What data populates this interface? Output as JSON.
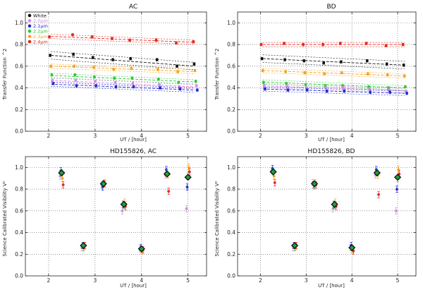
{
  "chart_data": [
    {
      "type": "scatter",
      "title": "AC",
      "xlabel": "UT / [hour]",
      "ylabel": "Transfer Function ^2",
      "xlim": [
        1.5,
        5.4
      ],
      "ylim": [
        0.0,
        1.1
      ],
      "xticks": [
        "2",
        "3",
        "4",
        "5"
      ],
      "yticks": [
        "0.0",
        "0.2",
        "0.4",
        "0.6",
        "0.8",
        "1.0"
      ],
      "legend": {
        "placement": "top-left",
        "entries": [
          "White",
          "2.0μm",
          "2.1μm",
          "2.2μm",
          "2.3μm",
          "2.4μm"
        ]
      },
      "x": [
        2.05,
        2.55,
        2.97,
        3.4,
        3.78,
        4.35,
        4.78,
        5.15
      ],
      "series": [
        {
          "name": "2.4μm",
          "color": "#e8241b",
          "values": [
            0.87,
            0.89,
            0.87,
            0.855,
            0.84,
            0.84,
            0.815,
            0.825
          ],
          "fit": [
            0.875,
            0.82
          ],
          "band": 0.02
        },
        {
          "name": "White",
          "color": "#111111",
          "values": [
            0.7,
            0.71,
            0.68,
            0.66,
            0.67,
            0.66,
            0.6,
            0.62
          ],
          "fit": [
            0.7,
            0.6
          ],
          "band": 0.035
        },
        {
          "name": "2.3μm",
          "color": "#f5a41a",
          "values": [
            0.6,
            0.6,
            0.59,
            0.57,
            0.58,
            0.57,
            0.55,
            0.56
          ],
          "fit": [
            0.6,
            0.55
          ],
          "band": 0.02
        },
        {
          "name": "2.2μm",
          "color": "#29c93a",
          "values": [
            0.52,
            0.52,
            0.5,
            0.49,
            0.49,
            0.48,
            0.45,
            0.46
          ],
          "fit": [
            0.515,
            0.455
          ],
          "band": 0.02
        },
        {
          "name": "2.0μm",
          "color": "#d88be0",
          "values": [
            0.47,
            0.47,
            0.46,
            0.45,
            0.44,
            0.43,
            0.41,
            0.42
          ],
          "fit": [
            0.47,
            0.41
          ],
          "band": 0.02
        },
        {
          "name": "2.1μm",
          "color": "#1f2ad6",
          "values": [
            0.44,
            0.42,
            0.42,
            0.41,
            0.41,
            0.4,
            0.39,
            0.38
          ],
          "fit": [
            0.435,
            0.38
          ],
          "band": 0.02
        }
      ]
    },
    {
      "type": "scatter",
      "title": "BD",
      "xlabel": "UT / [hour]",
      "ylabel": "Transfer Function ^2",
      "xlim": [
        1.5,
        5.4
      ],
      "ylim": [
        0.0,
        1.1
      ],
      "xticks": [
        "2",
        "3",
        "4",
        "5"
      ],
      "yticks": [
        "0.0",
        "0.2",
        "0.4",
        "0.6",
        "0.8",
        "1.0"
      ],
      "x": [
        2.05,
        2.55,
        2.97,
        3.4,
        3.78,
        4.35,
        4.78,
        5.15
      ],
      "series": [
        {
          "name": "2.4μm",
          "color": "#e8241b",
          "values": [
            0.8,
            0.81,
            0.8,
            0.8,
            0.81,
            0.81,
            0.79,
            0.8
          ],
          "fit": [
            0.8,
            0.8
          ],
          "band": 0.02
        },
        {
          "name": "White",
          "color": "#111111",
          "values": [
            0.67,
            0.66,
            0.65,
            0.63,
            0.64,
            0.65,
            0.62,
            0.61
          ],
          "fit": [
            0.67,
            0.61
          ],
          "band": 0.035
        },
        {
          "name": "2.3μm",
          "color": "#f5a41a",
          "values": [
            0.56,
            0.55,
            0.54,
            0.53,
            0.54,
            0.53,
            0.52,
            0.51
          ],
          "fit": [
            0.56,
            0.51
          ],
          "band": 0.02
        },
        {
          "name": "2.2μm",
          "color": "#29c93a",
          "values": [
            0.45,
            0.44,
            0.43,
            0.42,
            0.42,
            0.41,
            0.4,
            0.41
          ],
          "fit": [
            0.455,
            0.4
          ],
          "band": 0.02
        },
        {
          "name": "2.0μm",
          "color": "#d88be0",
          "values": [
            0.42,
            0.41,
            0.4,
            0.4,
            0.4,
            0.39,
            0.38,
            0.37
          ],
          "fit": [
            0.42,
            0.375
          ],
          "band": 0.02
        },
        {
          "name": "2.1μm",
          "color": "#1f2ad6",
          "values": [
            0.39,
            0.38,
            0.38,
            0.37,
            0.37,
            0.36,
            0.36,
            0.35
          ],
          "fit": [
            0.39,
            0.35
          ],
          "band": 0.02
        }
      ]
    },
    {
      "type": "scatter",
      "title": "HD155826, AC",
      "xlabel": "UT / [hour]",
      "ylabel": "Science Calibrated Visibility V²",
      "xlim": [
        1.5,
        5.4
      ],
      "ylim": [
        0.0,
        1.1
      ],
      "xticks": [
        "2",
        "3",
        "4",
        "5"
      ],
      "yticks": [
        "0.0",
        "0.2",
        "0.4",
        "0.6",
        "0.8",
        "1.0"
      ],
      "x": [
        2.28,
        2.75,
        3.18,
        3.62,
        4.0,
        4.55,
        5.0
      ],
      "series": [
        {
          "name": "2.0μm",
          "color": "#d88be0",
          "values": [
            0.92,
            0.26,
            0.84,
            0.6,
            0.25,
            0.93,
            0.62
          ]
        },
        {
          "name": "2.1μm",
          "color": "#1f2ad6",
          "values": [
            0.97,
            0.28,
            0.82,
            0.66,
            0.26,
            0.98,
            0.82
          ]
        },
        {
          "name": "2.2μm",
          "color": "#29c93a",
          "values": [
            0.95,
            0.26,
            0.85,
            0.65,
            0.24,
            0.95,
            0.92
          ]
        },
        {
          "name": "2.3μm",
          "color": "#f5a41a",
          "values": [
            0.9,
            0.27,
            0.86,
            0.68,
            0.23,
            0.93,
            1.0
          ]
        },
        {
          "name": "2.4μm",
          "color": "#e8241b",
          "values": [
            0.84,
            0.28,
            0.85,
            0.64,
            0.24,
            0.78,
            0.96
          ]
        },
        {
          "name": "White",
          "color": "#111111",
          "values": [
            0.95,
            0.28,
            0.85,
            0.66,
            0.25,
            0.94,
            0.91
          ],
          "marker": "diamond"
        }
      ]
    },
    {
      "type": "scatter",
      "title": "HD155826, BD",
      "xlabel": "UT / [hour]",
      "ylabel": "Science Calibrated Visibility V²",
      "xlim": [
        1.5,
        5.4
      ],
      "ylim": [
        0.0,
        1.1
      ],
      "xticks": [
        "2",
        "3",
        "4",
        "5"
      ],
      "yticks": [
        "0.0",
        "0.2",
        "0.4",
        "0.6",
        "0.8",
        "1.0"
      ],
      "x": [
        2.28,
        2.75,
        3.18,
        3.62,
        4.0,
        4.55,
        5.0
      ],
      "series": [
        {
          "name": "2.0μm",
          "color": "#d88be0",
          "values": [
            0.97,
            0.26,
            0.86,
            0.62,
            0.26,
            0.93,
            0.6
          ]
        },
        {
          "name": "2.1μm",
          "color": "#1f2ad6",
          "values": [
            0.99,
            0.28,
            0.84,
            0.66,
            0.28,
            0.98,
            0.8
          ]
        },
        {
          "name": "2.2μm",
          "color": "#29c93a",
          "values": [
            0.96,
            0.26,
            0.83,
            0.65,
            0.24,
            0.95,
            0.9
          ]
        },
        {
          "name": "2.3μm",
          "color": "#f5a41a",
          "values": [
            0.92,
            0.27,
            0.86,
            0.68,
            0.24,
            0.93,
            0.98
          ]
        },
        {
          "name": "2.4μm",
          "color": "#e8241b",
          "values": [
            0.86,
            0.28,
            0.84,
            0.64,
            0.23,
            0.75,
            0.94
          ]
        },
        {
          "name": "White",
          "color": "#111111",
          "values": [
            0.96,
            0.28,
            0.85,
            0.66,
            0.26,
            0.95,
            0.91
          ],
          "marker": "diamond"
        }
      ]
    }
  ]
}
